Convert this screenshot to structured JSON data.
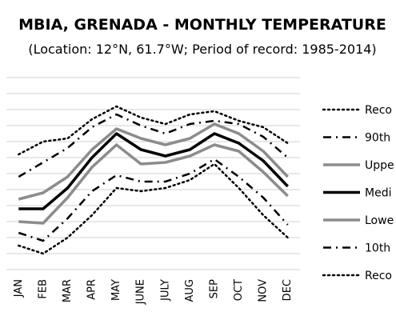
{
  "chart_data": {
    "type": "line",
    "title": "MBIA, GRENADA - MONTHLY TEMPERATURE",
    "subtitle": "(Location: 12°N, 61.7°W; Period of record: 1985-2014)",
    "categories": [
      "JAN",
      "FEB",
      "MAR",
      "APR",
      "MAY",
      "JUNE",
      "JULY",
      "AUG",
      "SEP",
      "OCT",
      "NOV",
      "DEC"
    ],
    "ylim": [
      0,
      12
    ],
    "grid": true,
    "legend_position": "right",
    "series": [
      {
        "name": "Reco",
        "style": "dotted-black",
        "values": [
          7.2,
          8.0,
          8.2,
          9.4,
          10.2,
          9.5,
          9.1,
          9.7,
          9.9,
          9.3,
          8.9,
          7.9
        ]
      },
      {
        "name": "90th",
        "style": "dashdot-black",
        "values": [
          5.8,
          6.7,
          7.6,
          8.9,
          9.7,
          9.0,
          8.5,
          9.1,
          9.3,
          9.1,
          8.3,
          7.0
        ]
      },
      {
        "name": "Uppe",
        "style": "solid-gray",
        "values": [
          4.4,
          4.8,
          5.8,
          7.5,
          8.8,
          8.2,
          7.8,
          8.2,
          9.1,
          8.5,
          7.4,
          5.8
        ]
      },
      {
        "name": "Medi",
        "style": "solid-black",
        "values": [
          3.8,
          3.8,
          5.1,
          7.0,
          8.5,
          7.5,
          7.1,
          7.5,
          8.5,
          7.9,
          6.8,
          5.2
        ]
      },
      {
        "name": "Lowe",
        "style": "solid-gray",
        "values": [
          3.0,
          2.9,
          4.5,
          6.4,
          7.8,
          6.6,
          6.7,
          7.1,
          7.8,
          7.4,
          6.1,
          4.6
        ]
      },
      {
        "name": "10th",
        "style": "dashdot-black",
        "values": [
          2.3,
          1.8,
          3.2,
          4.9,
          5.9,
          5.5,
          5.5,
          6.0,
          6.9,
          5.8,
          4.5,
          2.8
        ]
      },
      {
        "name": "Reco",
        "style": "dotted-black",
        "values": [
          1.5,
          1.0,
          2.0,
          3.4,
          5.1,
          4.9,
          5.1,
          5.6,
          6.6,
          5.1,
          3.4,
          2.0
        ]
      }
    ]
  }
}
